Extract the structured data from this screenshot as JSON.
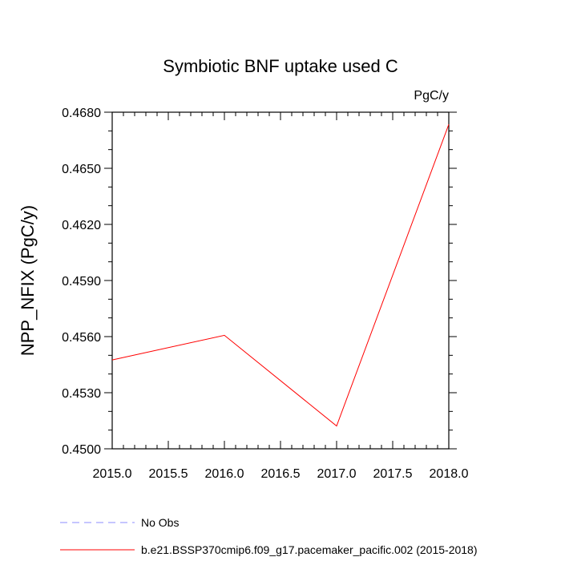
{
  "chart_data": {
    "type": "line",
    "title": "Symbiotic BNF uptake used C",
    "units_label": "PgC/y",
    "ylabel": "NPP_NFIX  (PgC/y)",
    "xlabel": "",
    "xlim": [
      2015.0,
      2018.0
    ],
    "ylim": [
      0.45,
      0.468
    ],
    "x_ticks": [
      2015.0,
      2015.5,
      2016.0,
      2016.5,
      2017.0,
      2017.5,
      2018.0
    ],
    "x_tick_labels": [
      "2015.0",
      "2015.5",
      "2016.0",
      "2016.5",
      "2017.0",
      "2017.5",
      "2018.0"
    ],
    "y_ticks": [
      0.45,
      0.453,
      0.456,
      0.459,
      0.462,
      0.465,
      0.468
    ],
    "y_tick_labels": [
      "0.4500",
      "0.4530",
      "0.4560",
      "0.4590",
      "0.4620",
      "0.4650",
      "0.4680"
    ],
    "grid": false,
    "legend_position": "bottom",
    "series": [
      {
        "name": "b.e21.BSSP370cmip6.f09_g17.pacemaker_pacific.002 (2015-2018)",
        "color": "#ff0000",
        "dash": "solid",
        "x": [
          2015,
          2016,
          2017,
          2018
        ],
        "y": [
          0.45475,
          0.45607,
          0.45122,
          0.46735
        ]
      }
    ],
    "legend": [
      {
        "label": "No Obs",
        "color": "#8c8cff",
        "dash": "dashed"
      },
      {
        "label": "b.e21.BSSP370cmip6.f09_g17.pacemaker_pacific.002 (2015-2018)",
        "color": "#ff0000",
        "dash": "solid"
      }
    ]
  }
}
